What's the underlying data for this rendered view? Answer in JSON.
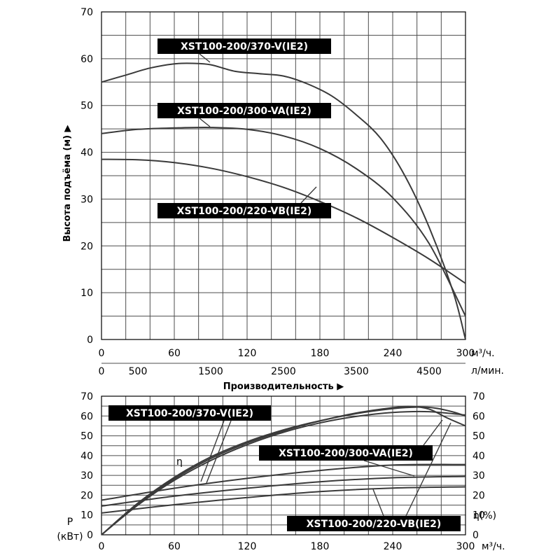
{
  "chart_data": [
    {
      "type": "line",
      "ylabel": "Высота подъёма (м) ▶",
      "xlabel": "Производительность ▶",
      "x_unit": "м³/ч.",
      "x2_unit": "л/мин.",
      "xlim": [
        0,
        300
      ],
      "ylim": [
        0,
        70
      ],
      "x_ticks": [
        "0",
        "60",
        "120",
        "180",
        "240",
        "300"
      ],
      "x2_ticks": [
        "0",
        "500",
        "1500",
        "2500",
        "3500",
        "4500"
      ],
      "x2_tick_values": [
        0,
        500,
        1500,
        2500,
        3500,
        4500
      ],
      "y_ticks": [
        "0",
        "10",
        "20",
        "30",
        "40",
        "50",
        "60",
        "70"
      ],
      "grid": true,
      "series": [
        {
          "name": "XST100-200/370-V(IE2)",
          "x": [
            0,
            20,
            40,
            60,
            75,
            90,
            110,
            130,
            150,
            170,
            190,
            210,
            230,
            250,
            270,
            290,
            300
          ],
          "y": [
            55,
            56.5,
            58,
            58.9,
            59,
            58.7,
            57.3,
            56.8,
            56.3,
            54.6,
            52,
            48,
            43,
            35,
            24,
            10,
            0
          ]
        },
        {
          "name": "XST100-200/300-VA(IE2)",
          "x": [
            0,
            30,
            60,
            90,
            120,
            150,
            180,
            210,
            240,
            270,
            300
          ],
          "y": [
            44,
            44.9,
            45.2,
            45.3,
            44.9,
            43.5,
            40.8,
            36.5,
            30.3,
            20.5,
            5
          ]
        },
        {
          "name": "XST100-200/220-VB(IE2)",
          "x": [
            0,
            30,
            60,
            90,
            120,
            150,
            180,
            210,
            240,
            270,
            300
          ],
          "y": [
            38.5,
            38.4,
            37.8,
            36.6,
            34.8,
            32.5,
            29.5,
            26,
            21.8,
            17.2,
            12
          ]
        }
      ]
    },
    {
      "type": "line",
      "ylabel_left": "P\n(кВт)",
      "ylabel_right": "η(%)",
      "eta_label": "η",
      "x_unit": "м³/ч.",
      "xlim": [
        0,
        300
      ],
      "ylim": [
        0,
        70
      ],
      "x_ticks": [
        "0",
        "60",
        "120",
        "180",
        "240",
        "300"
      ],
      "y_ticks": [
        "0",
        "10",
        "20",
        "30",
        "40",
        "50",
        "60",
        "70"
      ],
      "grid": true,
      "series": [
        {
          "name": "XST100-200/370-V(IE2) η",
          "x": [
            0,
            30,
            60,
            90,
            120,
            150,
            180,
            210,
            240,
            260,
            275,
            290,
            300
          ],
          "y": [
            0,
            16,
            29,
            39.3,
            47,
            53,
            57.6,
            61.2,
            63.7,
            64.5,
            64,
            62,
            60
          ]
        },
        {
          "name": "XST100-200/300-VA(IE2) η",
          "x": [
            0,
            30,
            60,
            90,
            120,
            150,
            180,
            210,
            240,
            255,
            270,
            285,
            300
          ],
          "y": [
            0,
            15.5,
            28.3,
            38.5,
            46.3,
            52.5,
            57.5,
            61.5,
            64.2,
            64.8,
            63.5,
            59,
            55
          ]
        },
        {
          "name": "XST100-200/220-VB(IE2) η",
          "x": [
            0,
            30,
            60,
            90,
            120,
            150,
            180,
            210,
            240,
            270,
            300
          ],
          "y": [
            0,
            15,
            27.5,
            37.5,
            45.5,
            51.8,
            56.5,
            59.8,
            61.8,
            62.2,
            60.5
          ]
        },
        {
          "name": "XST100-200/370-V(IE2) P",
          "x": [
            0,
            60,
            120,
            180,
            240,
            300
          ],
          "y": [
            17.5,
            23.5,
            28.5,
            32.5,
            35.2,
            35.5
          ]
        },
        {
          "name": "XST100-200/300-VA(IE2) P",
          "x": [
            0,
            60,
            120,
            180,
            240,
            300
          ],
          "y": [
            14.5,
            19.5,
            23.5,
            26.8,
            28.8,
            29.5
          ]
        },
        {
          "name": "XST100-200/220-VB(IE2) P",
          "x": [
            0,
            60,
            120,
            180,
            240,
            300
          ],
          "y": [
            11,
            15.2,
            18.8,
            21.8,
            23.6,
            24.2
          ]
        }
      ]
    }
  ]
}
